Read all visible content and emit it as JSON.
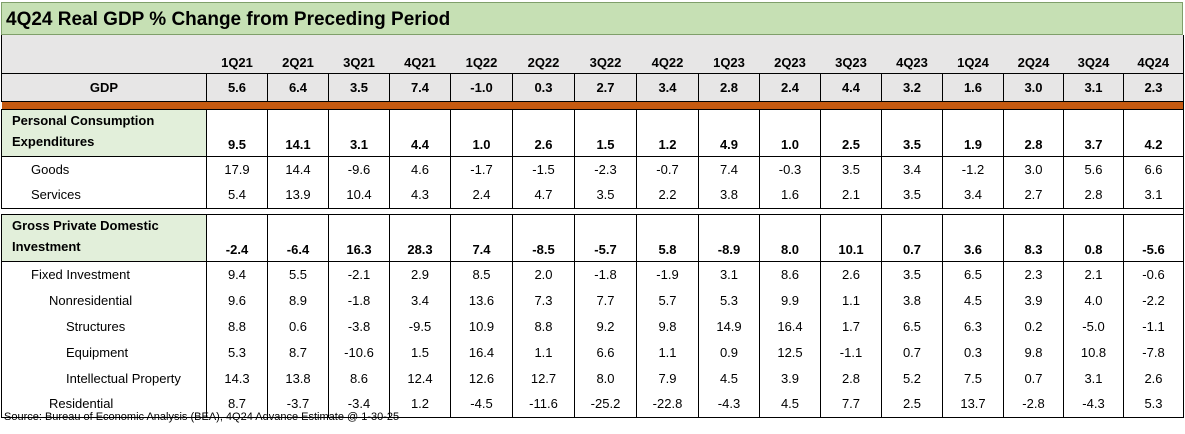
{
  "title": "4Q24 Real GDP % Change from Preceding Period",
  "quarters": [
    "1Q21",
    "2Q21",
    "3Q21",
    "4Q21",
    "1Q22",
    "2Q22",
    "3Q22",
    "4Q22",
    "1Q23",
    "2Q23",
    "3Q23",
    "4Q23",
    "1Q24",
    "2Q24",
    "3Q24",
    "4Q24"
  ],
  "gdp": {
    "label": "GDP",
    "values": [
      "5.6",
      "6.4",
      "3.5",
      "7.4",
      "-1.0",
      "0.3",
      "2.7",
      "3.4",
      "2.8",
      "2.4",
      "4.4",
      "3.2",
      "1.6",
      "3.0",
      "3.1",
      "2.3"
    ]
  },
  "pce": {
    "label": "Personal Consumption\nExpenditures",
    "values": [
      "9.5",
      "14.1",
      "3.1",
      "4.4",
      "1.0",
      "2.6",
      "1.5",
      "1.2",
      "4.9",
      "1.0",
      "2.5",
      "3.5",
      "1.9",
      "2.8",
      "3.7",
      "4.2"
    ],
    "rows": [
      {
        "label": "Goods",
        "values": [
          "17.9",
          "14.4",
          "-9.6",
          "4.6",
          "-1.7",
          "-1.5",
          "-2.3",
          "-0.7",
          "7.4",
          "-0.3",
          "3.5",
          "3.4",
          "-1.2",
          "3.0",
          "5.6",
          "6.6"
        ]
      },
      {
        "label": "Services",
        "values": [
          "5.4",
          "13.9",
          "10.4",
          "4.3",
          "2.4",
          "4.7",
          "3.5",
          "2.2",
          "3.8",
          "1.6",
          "2.1",
          "3.5",
          "3.4",
          "2.7",
          "2.8",
          "3.1"
        ]
      }
    ]
  },
  "gpdi": {
    "label": "Gross Private Domestic\nInvestment",
    "values": [
      "-2.4",
      "-6.4",
      "16.3",
      "28.3",
      "7.4",
      "-8.5",
      "-5.7",
      "5.8",
      "-8.9",
      "8.0",
      "10.1",
      "0.7",
      "3.6",
      "8.3",
      "0.8",
      "-5.6"
    ],
    "rows": [
      {
        "label": "Fixed Investment",
        "values": [
          "9.4",
          "5.5",
          "-2.1",
          "2.9",
          "8.5",
          "2.0",
          "-1.8",
          "-1.9",
          "3.1",
          "8.6",
          "2.6",
          "3.5",
          "6.5",
          "2.3",
          "2.1",
          "-0.6"
        ]
      },
      {
        "label": "Nonresidential",
        "values": [
          "9.6",
          "8.9",
          "-1.8",
          "3.4",
          "13.6",
          "7.3",
          "7.7",
          "5.7",
          "5.3",
          "9.9",
          "1.1",
          "3.8",
          "4.5",
          "3.9",
          "4.0",
          "-2.2"
        ]
      },
      {
        "label": "Structures",
        "values": [
          "8.8",
          "0.6",
          "-3.8",
          "-9.5",
          "10.9",
          "8.8",
          "9.2",
          "9.8",
          "14.9",
          "16.4",
          "1.7",
          "6.5",
          "6.3",
          "0.2",
          "-5.0",
          "-1.1"
        ]
      },
      {
        "label": "Equipment",
        "values": [
          "5.3",
          "8.7",
          "-10.6",
          "1.5",
          "16.4",
          "1.1",
          "6.6",
          "1.1",
          "0.9",
          "12.5",
          "-1.1",
          "0.7",
          "0.3",
          "9.8",
          "10.8",
          "-7.8"
        ]
      },
      {
        "label": "Intellectual Property",
        "values": [
          "14.3",
          "13.8",
          "8.6",
          "12.4",
          "12.6",
          "12.7",
          "8.0",
          "7.9",
          "4.5",
          "3.9",
          "2.8",
          "5.2",
          "7.5",
          "0.7",
          "3.1",
          "2.6"
        ]
      },
      {
        "label": "Residential",
        "values": [
          "8.7",
          "-3.7",
          "-3.4",
          "1.2",
          "-4.5",
          "-11.6",
          "-25.2",
          "-22.8",
          "-4.3",
          "4.5",
          "7.7",
          "2.5",
          "13.7",
          "-2.8",
          "-4.3",
          "5.3"
        ]
      }
    ]
  },
  "source": "Source: Bureau of Economic Analysis (BEA), 4Q24 Advance Estimate @ 1-30-25"
}
